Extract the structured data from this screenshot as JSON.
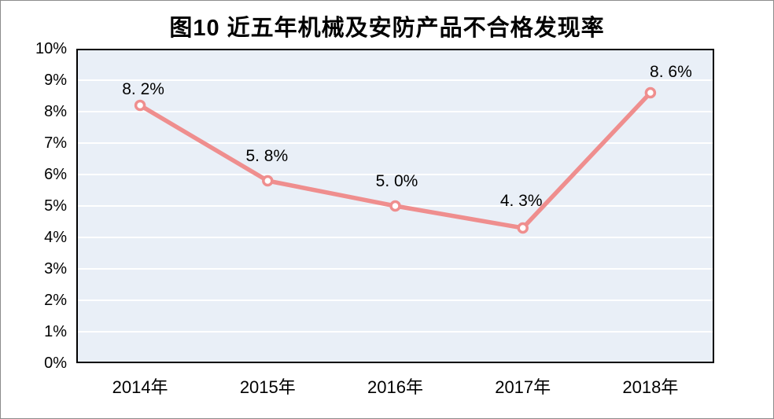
{
  "title": "图10 近五年机械及安防产品不合格发现率",
  "chart_data": {
    "type": "line",
    "title": "图10 近五年机械及安防产品不合格发现率",
    "categories": [
      "2014年",
      "2015年",
      "2016年",
      "2017年",
      "2018年"
    ],
    "values": [
      8.2,
      5.8,
      5.0,
      4.3,
      8.6
    ],
    "point_labels": [
      "8. 2%",
      "5. 8%",
      "5. 0%",
      "4. 3%",
      "8. 6%"
    ],
    "y_ticks": [
      "0%",
      "1%",
      "2%",
      "3%",
      "4%",
      "5%",
      "6%",
      "7%",
      "8%",
      "9%",
      "10%"
    ],
    "ylim": [
      0,
      10
    ],
    "xlabel": "",
    "ylabel": "",
    "grid": true,
    "legend": "none",
    "colors": {
      "line": "#EF8E8E",
      "marker_fill": "#FFFFFF",
      "plot_background": "#E9EFF7",
      "gridline": "#FFFFFF",
      "plot_border": "#000000",
      "text": "#000000",
      "page_background": "#FFFFFF"
    }
  }
}
